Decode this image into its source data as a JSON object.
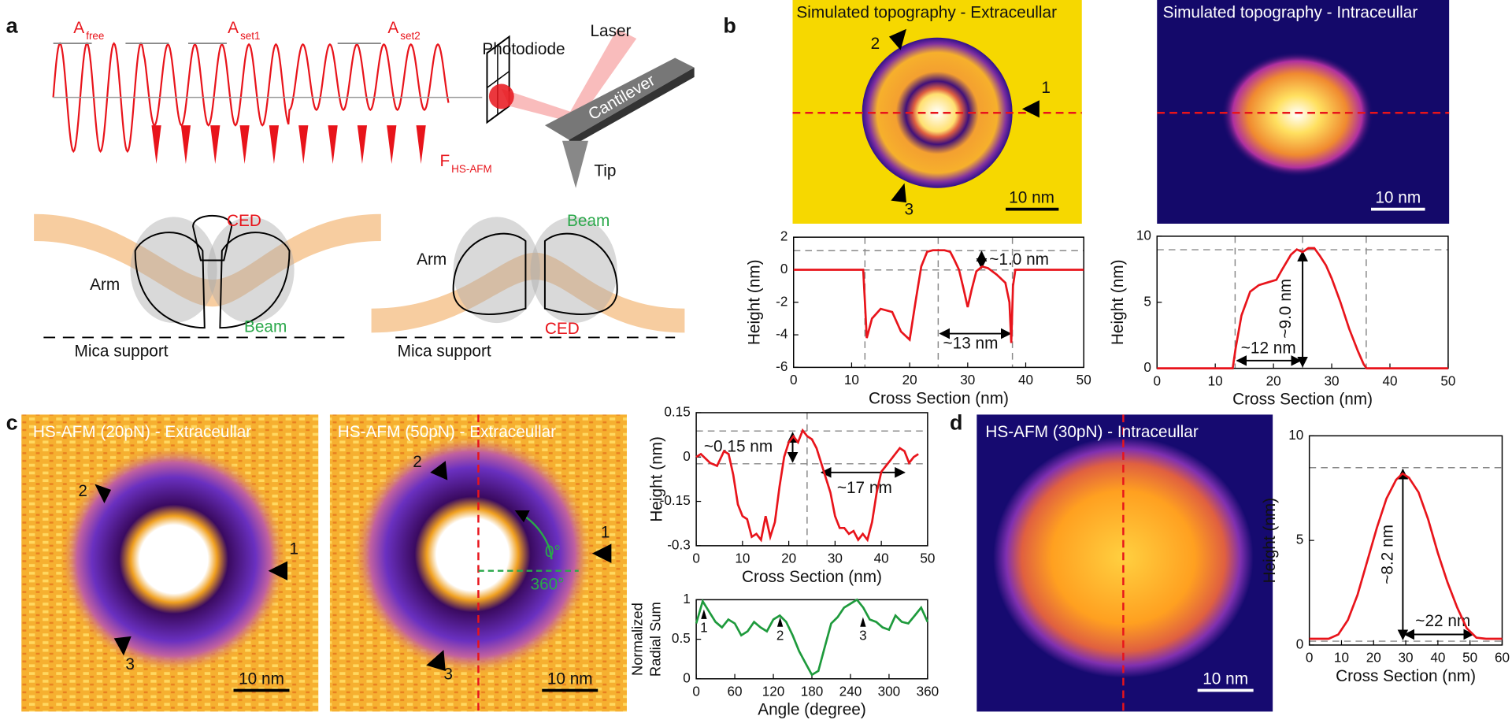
{
  "panel_labels": [
    "a",
    "b",
    "c",
    "d"
  ],
  "panel_a": {
    "amplitudes": [
      {
        "symbol": "A",
        "subscript": "free"
      },
      {
        "symbol": "A",
        "subscript": "set1"
      },
      {
        "symbol": "A",
        "subscript": "set2"
      }
    ],
    "photodiode": "Photodiode",
    "laser": "Laser",
    "cantilever": "Cantilever",
    "tip": "Tip",
    "force": {
      "symbol": "F",
      "subscript": "HS-AFM"
    },
    "diagram_left": {
      "ced": "CED",
      "arm": "Arm",
      "beam": "Beam",
      "support": "Mica support"
    },
    "diagram_right": {
      "ced": "CED",
      "arm": "Arm",
      "beam": "Beam",
      "support": "Mica support"
    }
  },
  "images": [
    {
      "title": "Simulated topography - Extraceullar",
      "scale_bar": "10 nm",
      "markers": [
        "1",
        "2",
        "3"
      ]
    },
    {
      "title": "Simulated topography - Intraceullar",
      "scale_bar": "10 nm"
    },
    {
      "title": "HS-AFM (20pN) - Extraceullar",
      "scale_bar": "10 nm",
      "markers": [
        "1",
        "2",
        "3"
      ]
    },
    {
      "title": "HS-AFM (50pN) - Extraceullar",
      "scale_bar": "10 nm",
      "markers": [
        "1",
        "2",
        "3"
      ],
      "angle_labels": [
        "0°",
        "360°"
      ]
    },
    {
      "title": "HS-AFM (30pN) - Intraceullar",
      "scale_bar": "10 nm"
    }
  ],
  "chart_data": [
    {
      "type": "line",
      "xlabel": "Cross Section (nm)",
      "ylabel": "Height (nm)",
      "x": [
        0,
        12,
        12.3,
        12.6,
        13.5,
        15,
        17,
        18.5,
        20,
        21,
        22,
        23,
        24,
        25,
        26,
        27,
        27.7,
        28.5,
        29.3,
        30,
        30.7,
        31.5,
        32.5,
        33.5,
        35,
        36.5,
        37.2,
        37.5,
        37.8,
        38.2,
        50
      ],
      "series": [
        {
          "color": "#e8141b",
          "values": [
            0,
            0,
            -2,
            -4.2,
            -3,
            -2.4,
            -2.6,
            -3.8,
            -4.3,
            -2,
            0.2,
            1.1,
            1.2,
            1.2,
            1.2,
            1.1,
            0.6,
            0,
            -1.2,
            -2.3,
            -1.2,
            -0.1,
            0.2,
            0.1,
            -0.3,
            -0.8,
            -2,
            -4.5,
            -1,
            0,
            0
          ]
        }
      ],
      "xlim": [
        0,
        50
      ],
      "ylim": [
        -6,
        2
      ],
      "xticks": [
        0,
        10,
        20,
        30,
        40,
        50
      ],
      "yticks": [
        -6,
        -4,
        -2,
        0,
        2
      ],
      "annotations": [
        "~1.0 nm",
        "~13 nm"
      ]
    },
    {
      "type": "line",
      "xlabel": "Cross Section (nm)",
      "ylabel": "Height (nm)",
      "x": [
        0,
        13,
        13.5,
        14.5,
        16,
        17.5,
        19,
        20.5,
        21.5,
        23,
        24,
        25,
        26,
        27,
        28,
        29,
        30,
        31.5,
        33,
        34.5,
        35.5,
        36,
        50
      ],
      "series": [
        {
          "color": "#e8141b",
          "values": [
            0,
            0,
            1.5,
            4,
            5.8,
            6.3,
            6.5,
            6.7,
            7.5,
            8.6,
            9,
            8.8,
            9.1,
            9.1,
            8.5,
            7.8,
            6.8,
            5,
            3,
            1.3,
            0.3,
            0,
            0
          ]
        }
      ],
      "xlim": [
        0,
        50
      ],
      "ylim": [
        0,
        10
      ],
      "xticks": [
        0,
        10,
        20,
        30,
        40,
        50
      ],
      "yticks": [
        0,
        5,
        10
      ],
      "annotations": [
        "~9.0 nm",
        "~12 nm"
      ]
    },
    {
      "type": "line",
      "xlabel": "Cross Section (nm)",
      "ylabel": "Height (nm)",
      "x": [
        0,
        1,
        3,
        4.5,
        6,
        7,
        8,
        9,
        10,
        11,
        12,
        13,
        14,
        15,
        16,
        17,
        18,
        19,
        20,
        21,
        22,
        23,
        24,
        25,
        26,
        27,
        28,
        29,
        30,
        31,
        32,
        33,
        34,
        35,
        36,
        37,
        38,
        39,
        40,
        41,
        42,
        43,
        44,
        45,
        46,
        47,
        48
      ],
      "series": [
        {
          "color": "#e8141b",
          "values": [
            0,
            0.01,
            -0.02,
            -0.03,
            0.02,
            0.01,
            -0.06,
            -0.16,
            -0.2,
            -0.21,
            -0.27,
            -0.26,
            -0.28,
            -0.2,
            -0.27,
            -0.22,
            -0.1,
            0,
            0.05,
            0.07,
            0.05,
            0.09,
            0.07,
            0.06,
            0.03,
            -0.02,
            -0.07,
            -0.12,
            -0.2,
            -0.24,
            -0.24,
            -0.26,
            -0.25,
            -0.28,
            -0.26,
            -0.28,
            -0.22,
            -0.12,
            -0.05,
            -0.03,
            -0.01,
            0.01,
            0.03,
            0.02,
            -0.02,
            0,
            0.01
          ]
        }
      ],
      "xlim": [
        0,
        50
      ],
      "ylim": [
        -0.3,
        0.15
      ],
      "xticks": [
        0,
        10,
        20,
        30,
        40,
        50
      ],
      "yticks": [
        -0.3,
        -0.15,
        0,
        0.15
      ],
      "annotations": [
        "~0.15 nm",
        "~17 nm"
      ]
    },
    {
      "type": "line",
      "xlabel": "Angle (degree)",
      "ylabel": [
        "Normalized",
        "Radial Sum"
      ],
      "x": [
        0,
        10,
        20,
        30,
        40,
        50,
        60,
        70,
        80,
        90,
        100,
        110,
        120,
        130,
        140,
        150,
        160,
        170,
        180,
        190,
        200,
        210,
        220,
        230,
        240,
        250,
        260,
        270,
        280,
        290,
        300,
        310,
        320,
        330,
        340,
        350,
        360
      ],
      "series": [
        {
          "color": "#1e9a3c",
          "values": [
            0.7,
            0.98,
            0.85,
            0.72,
            0.65,
            0.75,
            0.7,
            0.55,
            0.6,
            0.72,
            0.65,
            0.6,
            0.75,
            0.8,
            0.72,
            0.55,
            0.35,
            0.2,
            0.05,
            0.1,
            0.4,
            0.7,
            0.78,
            0.9,
            0.95,
            1.0,
            0.9,
            0.75,
            0.72,
            0.65,
            0.62,
            0.8,
            0.72,
            0.7,
            0.8,
            0.9,
            0.72
          ]
        }
      ],
      "xlim": [
        0,
        360
      ],
      "ylim": [
        0,
        1
      ],
      "xticks": [
        0,
        60,
        120,
        180,
        240,
        300,
        360
      ],
      "yticks": [
        0,
        0.5,
        1
      ],
      "annotations": [
        "1",
        "2",
        "3"
      ]
    },
    {
      "type": "line",
      "xlabel": "Cross Section (nm)",
      "ylabel": "Height (nm)",
      "x": [
        0,
        3,
        6,
        9,
        12,
        15,
        18,
        21,
        24,
        27,
        29,
        31,
        34,
        37,
        40,
        43,
        46,
        49,
        52,
        55,
        58,
        60
      ],
      "series": [
        {
          "color": "#e8141b",
          "values": [
            0.3,
            0.3,
            0.3,
            0.5,
            1.2,
            2.4,
            4,
            5.6,
            7,
            7.9,
            8.2,
            8.0,
            7.3,
            6,
            4.4,
            3,
            1.8,
            0.8,
            0.35,
            0.3,
            0.3,
            0.3
          ]
        }
      ],
      "xlim": [
        0,
        60
      ],
      "ylim": [
        0,
        10
      ],
      "xticks": [
        0,
        10,
        20,
        30,
        40,
        50,
        60
      ],
      "yticks": [
        0,
        5,
        10
      ],
      "annotations": [
        "~8.2 nm",
        "~22 nm"
      ]
    }
  ]
}
